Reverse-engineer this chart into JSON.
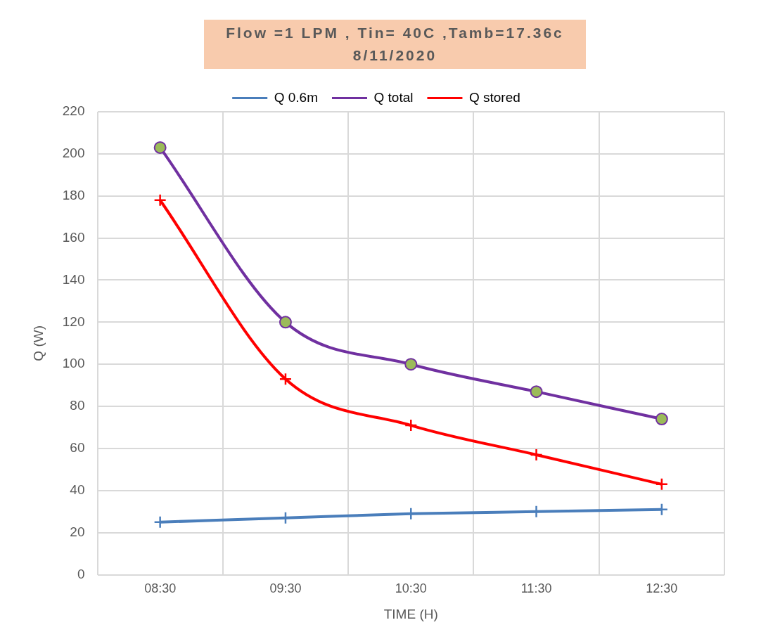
{
  "chart_data": {
    "type": "line",
    "title": "Flow =1 LPM , Tin= 40C ,Tamb=17.36c",
    "subtitle": "8/11/2020",
    "xlabel": "TIME (H)",
    "ylabel": "Q (W)",
    "categories": [
      "08:30",
      "09:30",
      "10:30",
      "11:30",
      "12:30"
    ],
    "series": [
      {
        "name": "Q 0.6m",
        "color": "#4a7ebb",
        "marker": "cross",
        "values": [
          25,
          27,
          29,
          30,
          31
        ]
      },
      {
        "name": "Q total",
        "color": "#7030a0",
        "marker": "circle",
        "values": [
          203,
          120,
          100,
          87,
          74
        ]
      },
      {
        "name": "Q stored",
        "color": "#ff0000",
        "marker": "cross",
        "values": [
          178,
          93,
          71,
          57,
          43
        ]
      }
    ],
    "ylim": [
      0,
      220
    ],
    "yticks": [
      0,
      20,
      40,
      60,
      80,
      100,
      120,
      140,
      160,
      180,
      200,
      220
    ],
    "grid": true,
    "legend": "top"
  }
}
